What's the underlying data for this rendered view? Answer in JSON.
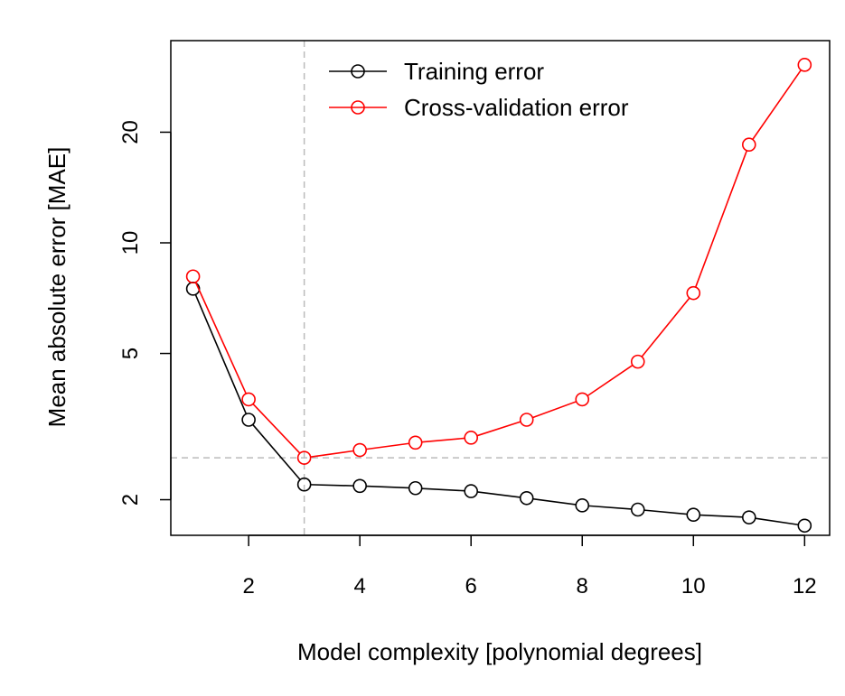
{
  "chart_data": {
    "type": "line",
    "title": "",
    "xlabel": "Model complexity [polynomial degrees]",
    "ylabel": "Mean absolute error [MAE]",
    "y_scale": "log",
    "xlim": [
      0.6,
      12.45
    ],
    "ylim": [
      1.6,
      35.5
    ],
    "x_ticks": [
      2,
      4,
      6,
      8,
      10,
      12
    ],
    "y_ticks": [
      2,
      5,
      10,
      20
    ],
    "x_tick_labels": [
      "2",
      "4",
      "6",
      "8",
      "10",
      "12"
    ],
    "y_tick_labels": [
      "2",
      "5",
      "10",
      "20"
    ],
    "x": [
      1,
      2,
      3,
      4,
      5,
      6,
      7,
      8,
      9,
      10,
      11,
      12
    ],
    "series": [
      {
        "name": "Training error",
        "color": "#000000",
        "values": [
          7.5,
          3.3,
          2.2,
          2.18,
          2.15,
          2.11,
          2.02,
          1.93,
          1.88,
          1.82,
          1.79,
          1.7
        ]
      },
      {
        "name": "Cross-validation error",
        "color": "#ff0000",
        "values": [
          8.1,
          3.75,
          2.6,
          2.73,
          2.86,
          2.95,
          3.3,
          3.75,
          4.75,
          7.3,
          18.5,
          30.5
        ]
      }
    ],
    "reference_lines": {
      "vertical_x": 3,
      "horizontal_y": 2.6,
      "color": "#bbbbbb",
      "style": "dashed"
    },
    "legend_position": "top-center",
    "grid": false
  }
}
